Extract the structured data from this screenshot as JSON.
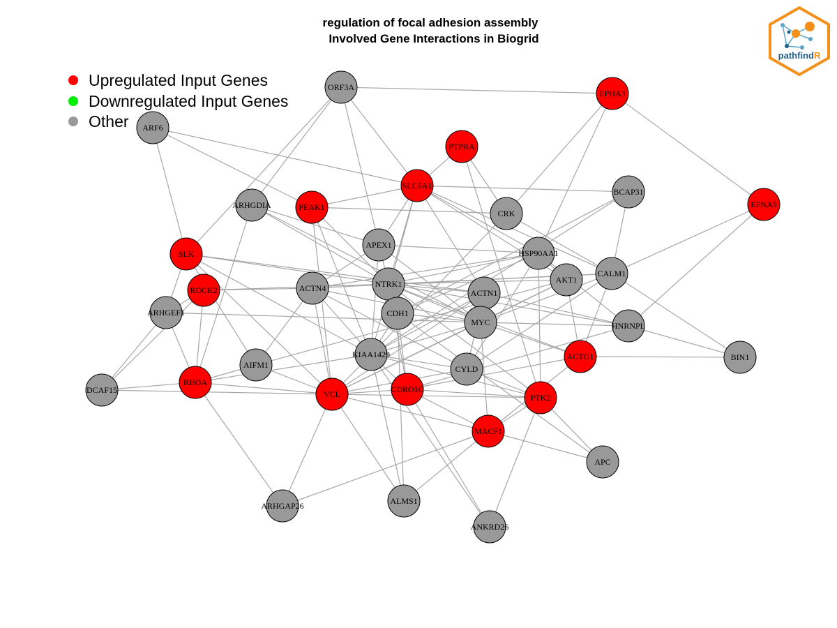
{
  "title": {
    "line1": "regulation of focal adhesion assembly",
    "line2": "Involved Gene Interactions in Biogrid"
  },
  "legend": [
    {
      "label": "Upregulated Input Genes",
      "color": "#ff0000"
    },
    {
      "label": "Downregulated Input Genes",
      "color": "#00ee00"
    },
    {
      "label": "Other",
      "color": "#999999"
    }
  ],
  "logo": {
    "text_main": "pathfind",
    "text_accent": "R",
    "accent_color": "#f39019",
    "text_color": "#1f5f8b"
  },
  "colors": {
    "up": "#ff0000",
    "other": "#999999",
    "edge": "#a6a6a6"
  },
  "nodes": [
    {
      "id": "ORF3A",
      "type": "other"
    },
    {
      "id": "EPHA3",
      "type": "up"
    },
    {
      "id": "ARF6",
      "type": "other"
    },
    {
      "id": "PTPRA",
      "type": "up"
    },
    {
      "id": "SLC9A1",
      "type": "up"
    },
    {
      "id": "BCAP31",
      "type": "other"
    },
    {
      "id": "EFNA5",
      "type": "up"
    },
    {
      "id": "ARHGDIA",
      "type": "other"
    },
    {
      "id": "PEAK1",
      "type": "up"
    },
    {
      "id": "CRK",
      "type": "other"
    },
    {
      "id": "APEX1",
      "type": "other"
    },
    {
      "id": "SLK",
      "type": "up"
    },
    {
      "id": "HSP90AA1",
      "type": "other"
    },
    {
      "id": "ROCK2",
      "type": "up"
    },
    {
      "id": "ACTN4",
      "type": "other"
    },
    {
      "id": "NTRK1",
      "type": "other"
    },
    {
      "id": "AKT1",
      "type": "other"
    },
    {
      "id": "CALM1",
      "type": "other"
    },
    {
      "id": "ACTN1",
      "type": "other"
    },
    {
      "id": "ARHGEF1",
      "type": "other"
    },
    {
      "id": "CDH1",
      "type": "other"
    },
    {
      "id": "MYC",
      "type": "other"
    },
    {
      "id": "HNRNPL",
      "type": "other"
    },
    {
      "id": "KIAA1429",
      "type": "other"
    },
    {
      "id": "ACTG1",
      "type": "up"
    },
    {
      "id": "BIN1",
      "type": "other"
    },
    {
      "id": "AIFM1",
      "type": "other"
    },
    {
      "id": "CYLD",
      "type": "other"
    },
    {
      "id": "RHOA",
      "type": "up"
    },
    {
      "id": "DCAF15",
      "type": "other"
    },
    {
      "id": "VCL",
      "type": "up"
    },
    {
      "id": "CORO1C",
      "type": "up"
    },
    {
      "id": "PTK2",
      "type": "up"
    },
    {
      "id": "MACF1",
      "type": "up"
    },
    {
      "id": "APC",
      "type": "other"
    },
    {
      "id": "ARHGAP26",
      "type": "other"
    },
    {
      "id": "ALMS1",
      "type": "other"
    },
    {
      "id": "ANKRD26",
      "type": "other"
    }
  ],
  "edges": [
    [
      "ORF3A",
      "EPHA3"
    ],
    [
      "ORF3A",
      "SLC9A1"
    ],
    [
      "ORF3A",
      "ARHGDIA"
    ],
    [
      "ORF3A",
      "NTRK1"
    ],
    [
      "ORF3A",
      "SLK"
    ],
    [
      "EPHA3",
      "EFNA5"
    ],
    [
      "EPHA3",
      "HSP90AA1"
    ],
    [
      "EPHA3",
      "CRK"
    ],
    [
      "ARF6",
      "PEAK1"
    ],
    [
      "ARF6",
      "SLC9A1"
    ],
    [
      "ARF6",
      "SLK"
    ],
    [
      "PTPRA",
      "CRK"
    ],
    [
      "PTPRA",
      "PTK2"
    ],
    [
      "PTPRA",
      "SLC9A1"
    ],
    [
      "SLC9A1",
      "BCAP31"
    ],
    [
      "SLC9A1",
      "PEAK1"
    ],
    [
      "SLC9A1",
      "CALM1"
    ],
    [
      "SLC9A1",
      "HSP90AA1"
    ],
    [
      "SLC9A1",
      "APEX1"
    ],
    [
      "SLC9A1",
      "NTRK1"
    ],
    [
      "SLC9A1",
      "ACTN1"
    ],
    [
      "SLC9A1",
      "KIAA1429"
    ],
    [
      "SLC9A1",
      "AKT1"
    ],
    [
      "EFNA5",
      "CALM1"
    ],
    [
      "EFNA5",
      "HNRNPL"
    ],
    [
      "BCAP31",
      "KIAA1429"
    ],
    [
      "BCAP31",
      "CDH1"
    ],
    [
      "BCAP31",
      "CALM1"
    ],
    [
      "PEAK1",
      "CRK"
    ],
    [
      "PEAK1",
      "VCL"
    ],
    [
      "PEAK1",
      "KIAA1429"
    ],
    [
      "PEAK1",
      "NTRK1"
    ],
    [
      "ARHGDIA",
      "RHOA"
    ],
    [
      "ARHGDIA",
      "NTRK1"
    ],
    [
      "ARHGDIA",
      "MYC"
    ],
    [
      "ARHGDIA",
      "APEX1"
    ],
    [
      "CRK",
      "CALM1"
    ],
    [
      "CRK",
      "KIAA1429"
    ],
    [
      "APEX1",
      "ACTN4"
    ],
    [
      "APEX1",
      "HSP90AA1"
    ],
    [
      "APEX1",
      "MYC"
    ],
    [
      "APEX1",
      "KIAA1429"
    ],
    [
      "SLK",
      "ARHGEF1"
    ],
    [
      "SLK",
      "AIFM1"
    ],
    [
      "SLK",
      "KIAA1429"
    ],
    [
      "SLK",
      "NTRK1"
    ],
    [
      "SLK",
      "ACTN1"
    ],
    [
      "SLK",
      "VCL"
    ],
    [
      "HSP90AA1",
      "CYLD"
    ],
    [
      "HSP90AA1",
      "NTRK1"
    ],
    [
      "HSP90AA1",
      "ACTN4"
    ],
    [
      "HSP90AA1",
      "HNRNPL"
    ],
    [
      "HSP90AA1",
      "AKT1"
    ],
    [
      "HSP90AA1",
      "CDH1"
    ],
    [
      "HSP90AA1",
      "PTK2"
    ],
    [
      "ROCK2",
      "RHOA"
    ],
    [
      "ROCK2",
      "ACTN4"
    ],
    [
      "ROCK2",
      "NTRK1"
    ],
    [
      "ROCK2",
      "DCAF15"
    ],
    [
      "ROCK2",
      "ARHGEF1"
    ],
    [
      "ACTN4",
      "AIFM1"
    ],
    [
      "ACTN4",
      "KIAA1429"
    ],
    [
      "ACTN4",
      "MYC"
    ],
    [
      "ACTN4",
      "VCL"
    ],
    [
      "ACTN4",
      "CALM1"
    ],
    [
      "ACTN4",
      "CYLD"
    ],
    [
      "NTRK1",
      "ACTN1"
    ],
    [
      "NTRK1",
      "MYC"
    ],
    [
      "NTRK1",
      "PTK2"
    ],
    [
      "NTRK1",
      "AKT1"
    ],
    [
      "NTRK1",
      "CDH1"
    ],
    [
      "NTRK1",
      "CALM1"
    ],
    [
      "NTRK1",
      "HNRNPL"
    ],
    [
      "NTRK1",
      "ACTG1"
    ],
    [
      "NTRK1",
      "CORO1C"
    ],
    [
      "AKT1",
      "MYC"
    ],
    [
      "AKT1",
      "ACTG1"
    ],
    [
      "AKT1",
      "VCL"
    ],
    [
      "AKT1",
      "AIFM1"
    ],
    [
      "CALM1",
      "BIN1"
    ],
    [
      "CALM1",
      "ACTG1"
    ],
    [
      "CALM1",
      "MYC"
    ],
    [
      "CALM1",
      "CYLD"
    ],
    [
      "ACTN1",
      "VCL"
    ],
    [
      "ACTN1",
      "CYLD"
    ],
    [
      "ACTN1",
      "HNRNPL"
    ],
    [
      "ACTN1",
      "KIAA1429"
    ],
    [
      "ARHGEF1",
      "RHOA"
    ],
    [
      "ARHGEF1",
      "DCAF15"
    ],
    [
      "ARHGEF1",
      "MYC"
    ],
    [
      "CDH1",
      "MYC"
    ],
    [
      "CDH1",
      "CORO1C"
    ],
    [
      "CDH1",
      "ALMS1"
    ],
    [
      "CDH1",
      "KIAA1429"
    ],
    [
      "CDH1",
      "APC"
    ],
    [
      "MYC",
      "HNRNPL"
    ],
    [
      "MYC",
      "KIAA1429"
    ],
    [
      "MYC",
      "VCL"
    ],
    [
      "MYC",
      "ACTG1"
    ],
    [
      "MYC",
      "MACF1"
    ],
    [
      "HNRNPL",
      "CORO1C"
    ],
    [
      "HNRNPL",
      "BIN1"
    ],
    [
      "KIAA1429",
      "CYLD"
    ],
    [
      "KIAA1429",
      "RHOA"
    ],
    [
      "KIAA1429",
      "VCL"
    ],
    [
      "KIAA1429",
      "CORO1C"
    ],
    [
      "KIAA1429",
      "PTK2"
    ],
    [
      "KIAA1429",
      "ALMS1"
    ],
    [
      "ACTG1",
      "BIN1"
    ],
    [
      "ACTG1",
      "CORO1C"
    ],
    [
      "ACTG1",
      "MACF1"
    ],
    [
      "AIFM1",
      "RHOA"
    ],
    [
      "AIFM1",
      "VCL"
    ],
    [
      "CYLD",
      "VCL"
    ],
    [
      "CYLD",
      "PTK2"
    ],
    [
      "RHOA",
      "DCAF15"
    ],
    [
      "RHOA",
      "VCL"
    ],
    [
      "RHOA",
      "ARHGAP26"
    ],
    [
      "DCAF15",
      "VCL"
    ],
    [
      "VCL",
      "CORO1C"
    ],
    [
      "VCL",
      "ALMS1"
    ],
    [
      "VCL",
      "ARHGAP26"
    ],
    [
      "VCL",
      "PTK2"
    ],
    [
      "VCL",
      "MACF1"
    ],
    [
      "CORO1C",
      "ANKRD26"
    ],
    [
      "CORO1C",
      "MACF1"
    ],
    [
      "CORO1C",
      "PTK2"
    ],
    [
      "PTK2",
      "ANKRD26"
    ],
    [
      "PTK2",
      "APC"
    ],
    [
      "PTK2",
      "MACF1"
    ],
    [
      "MACF1",
      "APC"
    ],
    [
      "MACF1",
      "ALMS1"
    ],
    [
      "ARHGAP26",
      "MACF1"
    ],
    [
      "ANKRD26",
      "KIAA1429"
    ]
  ]
}
